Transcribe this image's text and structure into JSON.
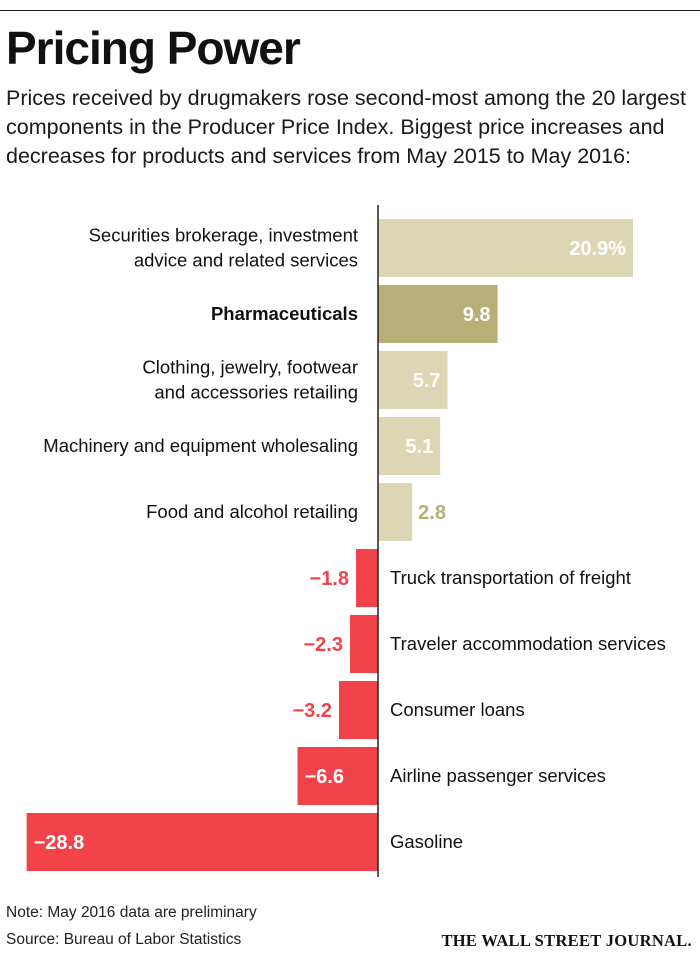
{
  "header": {
    "title": "Pricing Power",
    "subtitle": "Prices received by drugmakers rose second-most among the 20 largest components in the Producer Price Index. Biggest price increases and decreases for products and services from May 2015 to May 2016:"
  },
  "chart_data": {
    "type": "bar",
    "orientation": "horizontal",
    "unit": "%",
    "xlim": [
      -28.8,
      20.9
    ],
    "grid": false,
    "categories": [
      [
        "Securities brokerage, investment",
        "advice and related services"
      ],
      [
        "Pharmaceuticals"
      ],
      [
        "Clothing, jewelry, footwear",
        "and accessories retailing"
      ],
      [
        "Machinery and equipment wholesaling"
      ],
      [
        "Food and alcohol retailing"
      ],
      [
        "Truck transportation of freight"
      ],
      [
        "Traveler accommodation services"
      ],
      [
        "Consumer loans"
      ],
      [
        "Airline passenger services"
      ],
      [
        "Gasoline"
      ]
    ],
    "values": [
      20.9,
      9.8,
      5.7,
      5.1,
      2.8,
      -1.8,
      -2.3,
      -3.2,
      -6.6,
      -28.8
    ],
    "value_labels": [
      "20.9%",
      "9.8",
      "5.7",
      "5.1",
      "2.8",
      "−1.8",
      "−2.3",
      "−3.2",
      "−6.6",
      "−28.8"
    ],
    "highlight_index": 1,
    "colors": {
      "positive": "#dcd6b4",
      "highlight": "#b7ae78",
      "negative": "#f2434b",
      "label_on_light": "#ffffff",
      "label_outside_positive": "#b7ae78",
      "label_outside_negative": "#f2434b",
      "axis": "#222222"
    }
  },
  "footer": {
    "note": "Note: May 2016 data are preliminary",
    "source": "Source: Bureau of Labor Statistics",
    "publisher": "THE WALL STREET JOURNAL."
  }
}
